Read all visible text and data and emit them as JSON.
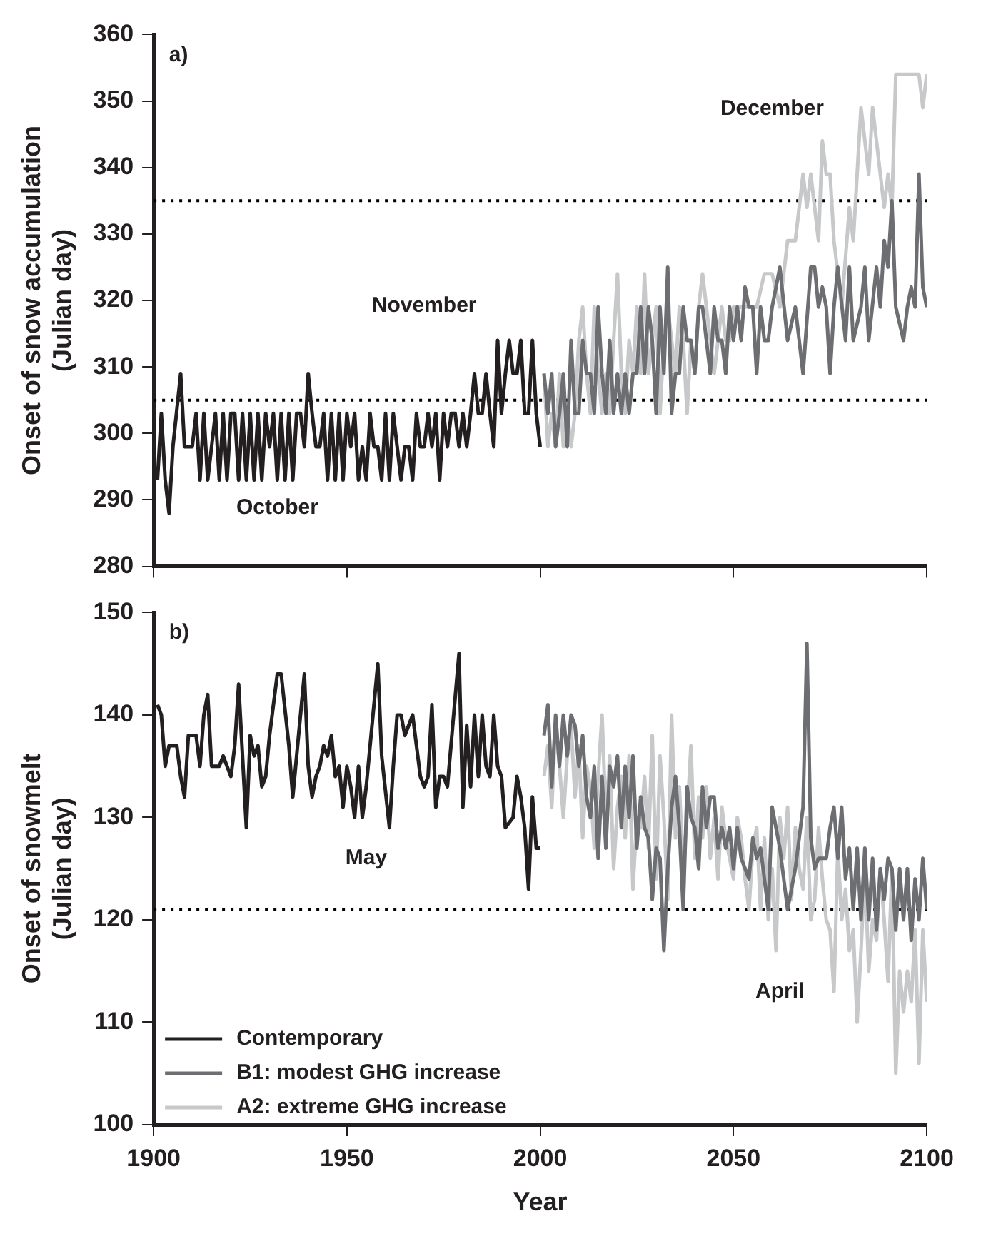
{
  "chart_data": [
    {
      "type": "line",
      "ylabel": "Onset of snow accumulation (Julian day)",
      "xlim": [
        1900,
        2100
      ],
      "xticks": [
        1900,
        1950,
        2000,
        2050,
        2100
      ],
      "ylim": [
        280,
        360
      ],
      "yticks": [
        280,
        290,
        300,
        310,
        320,
        330,
        340,
        350,
        360
      ],
      "tick_labels": "y",
      "grid": false,
      "legend": false,
      "marker": "none",
      "line_style": "solid",
      "annotations": [
        "a)",
        "October",
        "November",
        "December"
      ],
      "ref_lines": [
        {
          "axis": "y",
          "value": 305,
          "line_style": "dotted",
          "color": "#000000"
        },
        {
          "axis": "y",
          "value": 335,
          "line_style": "dotted",
          "color": "#000000"
        }
      ],
      "series": [
        {
          "color": "#231f20",
          "x": [
            1901,
            1902,
            1903,
            1904,
            1905,
            1907,
            1908,
            1910,
            1911,
            1912,
            1913,
            1914,
            1915,
            1916,
            1917,
            1918,
            1919,
            1920,
            1921,
            1922,
            1923,
            1924,
            1925,
            1926,
            1927,
            1928,
            1929,
            1930,
            1931,
            1932,
            1933,
            1934,
            1935,
            1936,
            1937,
            1938,
            1939,
            1940,
            1941,
            1942,
            1943,
            1944,
            1945,
            1946,
            1947,
            1948,
            1949,
            1950,
            1951,
            1952,
            1953,
            1954,
            1955,
            1956,
            1957,
            1958,
            1959,
            1960,
            1961,
            1962,
            1963,
            1964,
            1965,
            1966,
            1967,
            1968,
            1969,
            1970,
            1971,
            1972,
            1973,
            1974,
            1975,
            1976,
            1977,
            1978,
            1979,
            1980,
            1981,
            1982,
            1983,
            1984,
            1985,
            1986,
            1987,
            1988,
            1989,
            1990,
            1991,
            1992,
            1993,
            1994,
            1995,
            1996,
            1997,
            1998,
            1999,
            2000
          ],
          "values": [
            293,
            303,
            293,
            288,
            298,
            309,
            298,
            298,
            303,
            293,
            303,
            293,
            298,
            303,
            293,
            303,
            293,
            303,
            303,
            293,
            303,
            293,
            303,
            293,
            303,
            293,
            303,
            298,
            303,
            293,
            303,
            293,
            303,
            293,
            303,
            303,
            298,
            309,
            303,
            298,
            298,
            303,
            293,
            303,
            293,
            303,
            293,
            303,
            298,
            303,
            293,
            298,
            293,
            303,
            298,
            298,
            293,
            303,
            293,
            303,
            298,
            293,
            298,
            298,
            293,
            303,
            298,
            298,
            303,
            298,
            303,
            293,
            303,
            298,
            303,
            303,
            298,
            303,
            298,
            303,
            309,
            303,
            303,
            309,
            303,
            298,
            314,
            303,
            309,
            314,
            309,
            309,
            314,
            303,
            303,
            314,
            303,
            298
          ]
        },
        {
          "color": "#6d6e71",
          "x": [
            2001,
            2002,
            2003,
            2004,
            2005,
            2006,
            2007,
            2008,
            2009,
            2010,
            2011,
            2012,
            2013,
            2014,
            2015,
            2016,
            2017,
            2018,
            2019,
            2020,
            2021,
            2022,
            2023,
            2024,
            2025,
            2026,
            2027,
            2028,
            2029,
            2030,
            2031,
            2032,
            2033,
            2034,
            2035,
            2036,
            2037,
            2038,
            2039,
            2040,
            2041,
            2042,
            2043,
            2044,
            2045,
            2046,
            2047,
            2048,
            2049,
            2050,
            2051,
            2052,
            2053,
            2054,
            2055,
            2056,
            2057,
            2058,
            2059,
            2060,
            2062,
            2064,
            2066,
            2068,
            2070,
            2071,
            2072,
            2073,
            2074,
            2075,
            2076,
            2077,
            2079,
            2080,
            2081,
            2083,
            2084,
            2085,
            2087,
            2088,
            2089,
            2090,
            2091,
            2092,
            2094,
            2095,
            2096,
            2097,
            2098,
            2099,
            2100
          ],
          "values": [
            309,
            303,
            309,
            298,
            303,
            309,
            298,
            314,
            303,
            303,
            314,
            309,
            309,
            303,
            319,
            309,
            303,
            314,
            303,
            309,
            303,
            309,
            303,
            309,
            309,
            319,
            309,
            319,
            314,
            303,
            319,
            309,
            325,
            303,
            309,
            309,
            319,
            314,
            314,
            309,
            319,
            319,
            314,
            309,
            319,
            314,
            314,
            309,
            319,
            314,
            319,
            314,
            322,
            319,
            319,
            309,
            319,
            314,
            314,
            319,
            325,
            314,
            319,
            309,
            325,
            325,
            319,
            322,
            319,
            309,
            319,
            325,
            314,
            325,
            314,
            319,
            325,
            314,
            325,
            319,
            329,
            325,
            335,
            319,
            314,
            319,
            322,
            319,
            339,
            322,
            319
          ]
        },
        {
          "color": "#c7c8ca",
          "x": [
            2001,
            2002,
            2003,
            2004,
            2005,
            2006,
            2007,
            2008,
            2009,
            2010,
            2011,
            2012,
            2013,
            2014,
            2015,
            2016,
            2017,
            2018,
            2019,
            2020,
            2021,
            2022,
            2023,
            2024,
            2025,
            2026,
            2027,
            2028,
            2029,
            2030,
            2031,
            2032,
            2033,
            2034,
            2035,
            2036,
            2037,
            2038,
            2039,
            2040,
            2041,
            2042,
            2043,
            2044,
            2045,
            2046,
            2047,
            2048,
            2049,
            2050,
            2052,
            2054,
            2056,
            2058,
            2060,
            2062,
            2064,
            2066,
            2068,
            2069,
            2070,
            2071,
            2072,
            2073,
            2074,
            2075,
            2076,
            2078,
            2080,
            2081,
            2083,
            2085,
            2086,
            2088,
            2089,
            2090,
            2091,
            2092,
            2094,
            2096,
            2098,
            2099,
            2100
          ],
          "values": [
            309,
            298,
            303,
            298,
            309,
            298,
            303,
            298,
            303,
            314,
            319,
            309,
            303,
            319,
            309,
            303,
            309,
            303,
            314,
            324,
            309,
            303,
            314,
            309,
            319,
            309,
            324,
            309,
            314,
            319,
            303,
            314,
            319,
            314,
            309,
            319,
            314,
            303,
            314,
            309,
            319,
            324,
            319,
            314,
            309,
            314,
            319,
            314,
            314,
            319,
            319,
            319,
            319,
            324,
            324,
            319,
            329,
            329,
            339,
            334,
            339,
            334,
            329,
            344,
            339,
            339,
            329,
            319,
            334,
            329,
            349,
            339,
            349,
            339,
            334,
            339,
            334,
            354,
            354,
            354,
            354,
            349,
            354
          ]
        }
      ]
    },
    {
      "type": "line",
      "ylabel": "Onset of snowmelt (Julian day)",
      "xlabel": "Year",
      "xlim": [
        1900,
        2100
      ],
      "xticks": [
        1900,
        1950,
        2000,
        2050,
        2100
      ],
      "ylim": [
        100,
        150
      ],
      "yticks": [
        100,
        110,
        120,
        130,
        140,
        150
      ],
      "grid": false,
      "legend": "bottom left",
      "marker": "none",
      "line_style": "solid",
      "annotations": [
        "b)",
        "May",
        "April"
      ],
      "ref_lines": [
        {
          "axis": "y",
          "value": 121,
          "line_style": "dotted",
          "color": "#000000"
        }
      ],
      "series": [
        {
          "name": "Contemporary",
          "color": "#231f20",
          "x": [
            1901,
            1902,
            1903,
            1904,
            1906,
            1907,
            1908,
            1909,
            1911,
            1912,
            1913,
            1914,
            1915,
            1917,
            1918,
            1920,
            1921,
            1922,
            1924,
            1925,
            1926,
            1927,
            1928,
            1929,
            1930,
            1932,
            1933,
            1935,
            1936,
            1937,
            1939,
            1940,
            1941,
            1942,
            1943,
            1944,
            1945,
            1946,
            1947,
            1948,
            1949,
            1950,
            1951,
            1952,
            1953,
            1954,
            1955,
            1958,
            1959,
            1961,
            1962,
            1963,
            1964,
            1965,
            1966,
            1967,
            1968,
            1969,
            1970,
            1971,
            1972,
            1973,
            1974,
            1975,
            1976,
            1979,
            1980,
            1981,
            1982,
            1983,
            1984,
            1985,
            1986,
            1987,
            1988,
            1989,
            1990,
            1991,
            1993,
            1994,
            1995,
            1996,
            1997,
            1998,
            1999,
            2000
          ],
          "values": [
            141,
            140,
            135,
            137,
            137,
            134,
            132,
            138,
            138,
            135,
            140,
            142,
            135,
            135,
            136,
            134,
            137,
            143,
            129,
            138,
            136,
            137,
            133,
            134,
            138,
            144,
            144,
            137,
            132,
            136,
            144,
            135,
            132,
            134,
            135,
            137,
            136,
            138,
            134,
            135,
            131,
            135,
            133,
            130,
            135,
            130,
            133,
            145,
            136,
            129,
            135,
            140,
            140,
            138,
            139,
            140,
            137,
            134,
            133,
            134,
            141,
            131,
            134,
            134,
            133,
            146,
            131,
            139,
            133,
            140,
            134,
            140,
            135,
            134,
            140,
            135,
            134,
            129,
            130,
            134,
            132,
            129,
            123,
            132,
            127,
            127
          ]
        },
        {
          "name": "B1: modest GHG increase",
          "color": "#6d6e71",
          "x": [
            2001,
            2002,
            2003,
            2004,
            2005,
            2006,
            2007,
            2008,
            2009,
            2010,
            2011,
            2012,
            2013,
            2014,
            2015,
            2016,
            2017,
            2018,
            2019,
            2020,
            2021,
            2022,
            2023,
            2024,
            2025,
            2026,
            2027,
            2028,
            2029,
            2030,
            2031,
            2032,
            2033,
            2034,
            2035,
            2036,
            2037,
            2038,
            2039,
            2040,
            2041,
            2042,
            2043,
            2044,
            2045,
            2046,
            2047,
            2048,
            2049,
            2050,
            2051,
            2052,
            2053,
            2054,
            2055,
            2056,
            2057,
            2058,
            2059,
            2060,
            2062,
            2064,
            2066,
            2068,
            2069,
            2070,
            2071,
            2072,
            2074,
            2075,
            2076,
            2077,
            2078,
            2079,
            2080,
            2081,
            2082,
            2083,
            2084,
            2085,
            2086,
            2087,
            2088,
            2089,
            2090,
            2091,
            2092,
            2093,
            2094,
            2095,
            2096,
            2097,
            2098,
            2099,
            2100
          ],
          "values": [
            138,
            141,
            133,
            140,
            135,
            140,
            136,
            140,
            139,
            135,
            138,
            132,
            130,
            135,
            126,
            134,
            127,
            135,
            133,
            136,
            129,
            135,
            130,
            136,
            127,
            132,
            129,
            128,
            122,
            127,
            126,
            117,
            125,
            131,
            134,
            129,
            121,
            133,
            130,
            129,
            125,
            133,
            129,
            132,
            132,
            127,
            129,
            127,
            129,
            125,
            129,
            126,
            125,
            124,
            128,
            126,
            127,
            124,
            121,
            131,
            127,
            121,
            125,
            131,
            147,
            128,
            125,
            126,
            126,
            129,
            131,
            126,
            131,
            124,
            127,
            121,
            127,
            120,
            127,
            120,
            126,
            119,
            125,
            122,
            126,
            125,
            119,
            125,
            120,
            125,
            118,
            124,
            120,
            126,
            121
          ]
        },
        {
          "name": "A2: extreme GHG increase",
          "color": "#c7c8ca",
          "x": [
            2001,
            2002,
            2003,
            2004,
            2005,
            2006,
            2007,
            2008,
            2009,
            2010,
            2011,
            2012,
            2013,
            2014,
            2015,
            2016,
            2017,
            2018,
            2019,
            2020,
            2021,
            2022,
            2023,
            2024,
            2025,
            2026,
            2027,
            2028,
            2029,
            2030,
            2031,
            2032,
            2033,
            2034,
            2035,
            2036,
            2037,
            2038,
            2039,
            2040,
            2041,
            2042,
            2043,
            2044,
            2045,
            2046,
            2047,
            2048,
            2049,
            2050,
            2051,
            2052,
            2053,
            2054,
            2055,
            2056,
            2057,
            2058,
            2059,
            2060,
            2061,
            2062,
            2063,
            2064,
            2065,
            2066,
            2067,
            2068,
            2069,
            2070,
            2071,
            2072,
            2073,
            2074,
            2075,
            2076,
            2077,
            2078,
            2079,
            2080,
            2081,
            2082,
            2083,
            2084,
            2085,
            2086,
            2087,
            2088,
            2089,
            2090,
            2091,
            2092,
            2093,
            2094,
            2095,
            2096,
            2097,
            2098,
            2099,
            2100
          ],
          "values": [
            134,
            137,
            131,
            139,
            135,
            130,
            136,
            139,
            132,
            137,
            128,
            135,
            133,
            127,
            134,
            140,
            130,
            136,
            125,
            131,
            134,
            128,
            136,
            123,
            130,
            129,
            134,
            127,
            138,
            124,
            136,
            130,
            122,
            140,
            128,
            133,
            125,
            130,
            137,
            126,
            132,
            128,
            133,
            126,
            130,
            124,
            131,
            128,
            126,
            124,
            130,
            128,
            124,
            121,
            127,
            129,
            121,
            128,
            120,
            125,
            117,
            130,
            126,
            131,
            122,
            129,
            125,
            123,
            130,
            120,
            122,
            129,
            124,
            120,
            119,
            113,
            127,
            120,
            123,
            117,
            119,
            110,
            117,
            125,
            115,
            120,
            118,
            125,
            120,
            114,
            125,
            105,
            115,
            111,
            115,
            112,
            119,
            106,
            119,
            112
          ]
        }
      ]
    }
  ]
}
